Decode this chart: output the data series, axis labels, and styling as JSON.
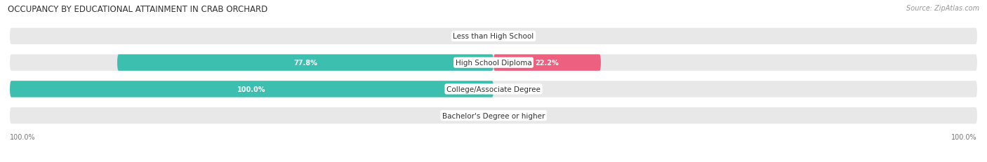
{
  "title": "OCCUPANCY BY EDUCATIONAL ATTAINMENT IN CRAB ORCHARD",
  "source": "Source: ZipAtlas.com",
  "categories": [
    "Less than High School",
    "High School Diploma",
    "College/Associate Degree",
    "Bachelor's Degree or higher"
  ],
  "owner_values": [
    0.0,
    77.8,
    100.0,
    0.0
  ],
  "renter_values": [
    0.0,
    22.2,
    0.0,
    0.0
  ],
  "owner_color": "#3DBFB0",
  "renter_color": "#EE6080",
  "owner_color_light": "#A0D8D4",
  "renter_color_light": "#F0AABB",
  "bar_bg_color": "#E8E8E8",
  "bar_height": 0.62,
  "axis_min": -100,
  "axis_max": 100,
  "figsize": [
    14.06,
    2.32
  ],
  "dpi": 100,
  "title_fontsize": 8.5,
  "label_fontsize": 7,
  "source_fontsize": 7,
  "category_fontsize": 7.5,
  "legend_fontsize": 7.5,
  "value_label_color_dark": "#FFFFFF",
  "value_label_color_light": "#777777"
}
